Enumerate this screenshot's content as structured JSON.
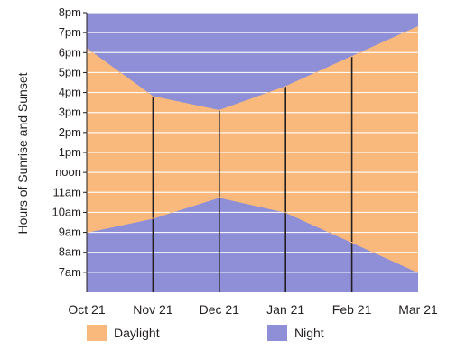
{
  "chart_data": {
    "type": "area",
    "xlabel": "",
    "ylabel": "Hours of Sunrise and Sunset",
    "x": [
      "Oct 21",
      "Nov 21",
      "Dec 21",
      "Jan 21",
      "Feb 21",
      "Mar 21"
    ],
    "y_ticks": [
      "7am",
      "8am",
      "9am",
      "10am",
      "11am",
      "noon",
      "1pm",
      "2pm",
      "3pm",
      "4pm",
      "5pm",
      "6pm",
      "7pm",
      "8pm"
    ],
    "ylim": [
      6,
      20
    ],
    "sunrise": [
      9.0,
      9.7,
      10.75,
      10.0,
      8.5,
      7.0
    ],
    "sunset": [
      18.2,
      15.8,
      15.1,
      16.3,
      17.8,
      19.3
    ],
    "series": [
      {
        "name": "Daylight",
        "color": "#f9b97c"
      },
      {
        "name": "Night",
        "color": "#8e8fd6"
      }
    ],
    "grid": true,
    "legend": "bottom",
    "reference_lines_at": [
      "Nov 21",
      "Dec 21",
      "Jan 21",
      "Feb 21"
    ]
  }
}
